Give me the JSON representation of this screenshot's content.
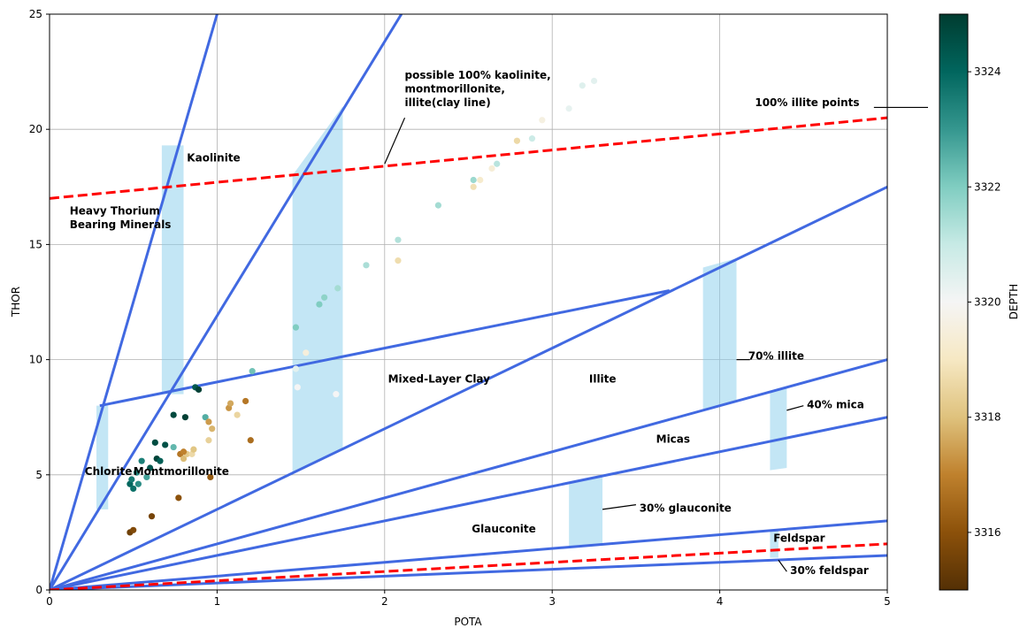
{
  "chart_data": {
    "type": "scatter",
    "xlabel": "POTA",
    "ylabel": "THOR",
    "xlim": [
      0,
      5
    ],
    "ylim": [
      0,
      25
    ],
    "grid": true,
    "xticks": [
      "0",
      "1",
      "2",
      "3",
      "4",
      "5"
    ],
    "yticks": [
      "0",
      "5",
      "10",
      "15",
      "20",
      "25"
    ],
    "colorbar": {
      "label": "DEPTH",
      "range": [
        3315,
        3325
      ],
      "ticks": [
        "3316",
        "3318",
        "3320",
        "3322",
        "3324"
      ],
      "colormap": "BrBG",
      "stops": [
        "#543005",
        "#8c510a",
        "#bf812d",
        "#dfc27d",
        "#f6e8c3",
        "#f5f5f5",
        "#c7eae5",
        "#80cdc1",
        "#35978f",
        "#01665e",
        "#003c30"
      ]
    },
    "colors": {
      "boundary_line": "#4169e1",
      "dashed_line": "#ff0000",
      "band": "#87ceeb",
      "points_cmap": "BrBG"
    },
    "boundary_lines": [
      {
        "from": [
          0,
          0
        ],
        "to": [
          1.0,
          25
        ]
      },
      {
        "from": [
          0,
          0
        ],
        "to": [
          2.1,
          25
        ]
      },
      {
        "from": [
          0,
          0
        ],
        "to": [
          5,
          17.5
        ]
      },
      {
        "from": [
          0.3,
          8
        ],
        "to": [
          3.7,
          13
        ]
      },
      {
        "from": [
          0,
          0
        ],
        "to": [
          5,
          10
        ]
      },
      {
        "from": [
          0,
          0
        ],
        "to": [
          5,
          7.5
        ]
      },
      {
        "from": [
          0,
          0
        ],
        "to": [
          5,
          3
        ]
      },
      {
        "from": [
          0,
          0
        ],
        "to": [
          5,
          1.5
        ]
      }
    ],
    "dashed_lines": [
      {
        "from": [
          0,
          17
        ],
        "to": [
          5,
          20.5
        ]
      },
      {
        "from": [
          0,
          0
        ],
        "to": [
          5,
          2
        ]
      }
    ],
    "bands": [
      {
        "x": [
          0.28,
          0.35
        ],
        "y0": [
          3.5,
          3.5
        ],
        "y1": [
          8.0,
          8.0
        ]
      },
      {
        "x": [
          0.67,
          0.8
        ],
        "y0": [
          8.5,
          8.5
        ],
        "y1": [
          19.3,
          19.3
        ]
      },
      {
        "x": [
          1.45,
          1.75
        ],
        "y0": [
          5.1,
          6.1
        ],
        "y1": [
          18.0,
          21.0
        ]
      },
      {
        "x": [
          3.9,
          4.1
        ],
        "y0": [
          7.8,
          8.2
        ],
        "y1": [
          14.0,
          14.4
        ]
      },
      {
        "x": [
          4.3,
          4.4
        ],
        "y0": [
          5.2,
          5.3
        ],
        "y1": [
          8.6,
          8.8
        ]
      },
      {
        "x": [
          3.1,
          3.3
        ],
        "y0": [
          1.9,
          2.0
        ],
        "y1": [
          4.7,
          4.9
        ]
      },
      {
        "x": [
          4.3,
          4.35
        ],
        "y0": [
          1.4,
          1.4
        ],
        "y1": [
          2.6,
          2.6
        ]
      }
    ],
    "points": [
      {
        "x": 0.48,
        "y": 4.6,
        "d": 3324.0
      },
      {
        "x": 0.5,
        "y": 4.4,
        "d": 3323.8
      },
      {
        "x": 0.49,
        "y": 4.8,
        "d": 3323.6
      },
      {
        "x": 0.52,
        "y": 5.1,
        "d": 3323.4
      },
      {
        "x": 0.53,
        "y": 4.6,
        "d": 3323.2
      },
      {
        "x": 0.55,
        "y": 5.6,
        "d": 3323.5
      },
      {
        "x": 0.58,
        "y": 4.9,
        "d": 3322.8
      },
      {
        "x": 0.6,
        "y": 5.3,
        "d": 3324.4
      },
      {
        "x": 0.63,
        "y": 6.4,
        "d": 3324.6
      },
      {
        "x": 0.64,
        "y": 5.7,
        "d": 3324.8
      },
      {
        "x": 0.66,
        "y": 5.6,
        "d": 3324.2
      },
      {
        "x": 0.69,
        "y": 6.3,
        "d": 3324.5
      },
      {
        "x": 0.74,
        "y": 6.2,
        "d": 3322.4
      },
      {
        "x": 0.74,
        "y": 7.6,
        "d": 3324.7
      },
      {
        "x": 0.81,
        "y": 7.5,
        "d": 3324.9
      },
      {
        "x": 0.87,
        "y": 8.8,
        "d": 3324.3
      },
      {
        "x": 0.89,
        "y": 8.7,
        "d": 3324.9
      },
      {
        "x": 0.93,
        "y": 7.5,
        "d": 3322.6
      },
      {
        "x": 0.95,
        "y": 7.3,
        "d": 3317.4
      },
      {
        "x": 0.97,
        "y": 7.0,
        "d": 3317.8
      },
      {
        "x": 0.95,
        "y": 6.5,
        "d": 3318.4
      },
      {
        "x": 0.78,
        "y": 5.9,
        "d": 3316.8
      },
      {
        "x": 0.8,
        "y": 5.7,
        "d": 3317.9
      },
      {
        "x": 0.82,
        "y": 5.9,
        "d": 3318.2
      },
      {
        "x": 0.85,
        "y": 5.9,
        "d": 3318.6
      },
      {
        "x": 0.86,
        "y": 6.1,
        "d": 3318.1
      },
      {
        "x": 0.8,
        "y": 6.0,
        "d": 3317.0
      },
      {
        "x": 0.96,
        "y": 4.9,
        "d": 3316.2
      },
      {
        "x": 0.77,
        "y": 4.0,
        "d": 3316.0
      },
      {
        "x": 0.61,
        "y": 3.2,
        "d": 3315.6
      },
      {
        "x": 0.48,
        "y": 2.5,
        "d": 3315.5
      },
      {
        "x": 0.5,
        "y": 2.6,
        "d": 3315.8
      },
      {
        "x": 1.07,
        "y": 7.9,
        "d": 3317.3
      },
      {
        "x": 1.08,
        "y": 8.1,
        "d": 3317.6
      },
      {
        "x": 1.12,
        "y": 7.6,
        "d": 3318.5
      },
      {
        "x": 1.17,
        "y": 8.2,
        "d": 3316.8
      },
      {
        "x": 1.2,
        "y": 6.5,
        "d": 3316.6
      },
      {
        "x": 1.21,
        "y": 9.5,
        "d": 3322.2
      },
      {
        "x": 1.47,
        "y": 11.4,
        "d": 3322.0
      },
      {
        "x": 1.48,
        "y": 8.8,
        "d": 3320.0
      },
      {
        "x": 1.53,
        "y": 10.3,
        "d": 3319.5
      },
      {
        "x": 1.47,
        "y": 9.6,
        "d": 3320.4
      },
      {
        "x": 1.61,
        "y": 12.4,
        "d": 3322.0
      },
      {
        "x": 1.64,
        "y": 12.7,
        "d": 3321.8
      },
      {
        "x": 1.72,
        "y": 13.1,
        "d": 3321.5
      },
      {
        "x": 1.71,
        "y": 8.5,
        "d": 3320.0
      },
      {
        "x": 1.89,
        "y": 14.1,
        "d": 3321.4
      },
      {
        "x": 2.08,
        "y": 15.2,
        "d": 3321.3
      },
      {
        "x": 2.08,
        "y": 14.3,
        "d": 3318.7
      },
      {
        "x": 2.32,
        "y": 16.7,
        "d": 3321.5
      },
      {
        "x": 2.53,
        "y": 17.5,
        "d": 3318.8
      },
      {
        "x": 2.53,
        "y": 17.8,
        "d": 3321.6
      },
      {
        "x": 2.57,
        "y": 17.8,
        "d": 3319.2
      },
      {
        "x": 2.64,
        "y": 18.3,
        "d": 3319.4
      },
      {
        "x": 2.67,
        "y": 18.5,
        "d": 3321.2
      },
      {
        "x": 2.79,
        "y": 19.5,
        "d": 3318.6
      },
      {
        "x": 2.88,
        "y": 19.6,
        "d": 3320.9
      },
      {
        "x": 2.94,
        "y": 20.4,
        "d": 3319.6
      },
      {
        "x": 3.1,
        "y": 20.9,
        "d": 3320.3
      },
      {
        "x": 3.18,
        "y": 21.9,
        "d": 3320.5
      },
      {
        "x": 3.25,
        "y": 22.1,
        "d": 3320.4
      }
    ],
    "labels": [
      {
        "text": "Kaolinite",
        "x": 0.82,
        "y": 18.6
      },
      {
        "text": "Heavy Thorium",
        "x": 0.12,
        "y": 16.3
      },
      {
        "text": "Bearing Minerals",
        "x": 0.12,
        "y": 15.7
      },
      {
        "text": "possible 100% kaolinite,",
        "x": 2.12,
        "y": 22.2
      },
      {
        "text": "montmorillonite,",
        "x": 2.12,
        "y": 21.6
      },
      {
        "text": "illite(clay line)",
        "x": 2.12,
        "y": 21.0
      },
      {
        "text": "100% illite points",
        "x": 4.21,
        "y": 21.0
      },
      {
        "text": "Mixed-Layer Clay",
        "x": 2.02,
        "y": 9.0
      },
      {
        "text": "Illite",
        "x": 3.22,
        "y": 9.0
      },
      {
        "text": "70% illite",
        "x": 4.17,
        "y": 10.0
      },
      {
        "text": "40% mica",
        "x": 4.52,
        "y": 7.9
      },
      {
        "text": "Micas",
        "x": 3.62,
        "y": 6.4
      },
      {
        "text": "Chlorite",
        "x": 0.21,
        "y": 5.0
      },
      {
        "text": "Montmorillonite",
        "x": 0.5,
        "y": 5.0
      },
      {
        "text": "30% glauconite",
        "x": 3.52,
        "y": 3.4
      },
      {
        "text": "Glauconite",
        "x": 2.52,
        "y": 2.5
      },
      {
        "text": "Feldspar",
        "x": 4.32,
        "y": 2.1
      },
      {
        "text": "30% feldspar",
        "x": 4.42,
        "y": 0.7
      }
    ],
    "annotation_lines": [
      {
        "from": [
          2.12,
          20.5
        ],
        "to": [
          2.0,
          18.5
        ]
      },
      {
        "from": [
          4.18,
          10.0
        ],
        "to": [
          4.1,
          10.0
        ]
      },
      {
        "from": [
          4.5,
          8.0
        ],
        "to": [
          4.4,
          7.8
        ]
      },
      {
        "from": [
          3.5,
          3.7
        ],
        "to": [
          3.3,
          3.5
        ]
      },
      {
        "from": [
          4.4,
          0.8
        ],
        "to": [
          4.35,
          1.3
        ]
      }
    ]
  }
}
